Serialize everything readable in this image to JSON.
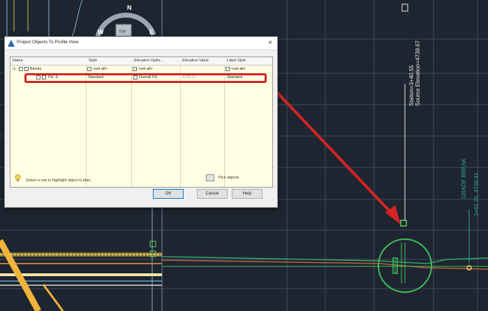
{
  "compass": {
    "north": "N",
    "west": "W",
    "east": "E",
    "top_button": "TOP"
  },
  "labels": {
    "station": "Station=3+40.55",
    "elevation": "Source Elevation=4739.67",
    "grade_break": "GRADE BREAK",
    "grade_sta": "3+61.35, 4739.41"
  },
  "dialog": {
    "title": "Project Objects To Profile View",
    "close": "×",
    "columns": [
      "Name",
      "Style",
      "Elevation Optio...",
      "Elevation Value",
      "Label Style"
    ],
    "rows": [
      {
        "name": "Blocks",
        "style": "<set all>",
        "elevation_option": "<set all>",
        "elevation_value": "",
        "label_style": "<set all>"
      },
      {
        "name": "FH- 6",
        "style": "Standard",
        "elevation_option": "Overall FG",
        "elevation_value": "4739.67'",
        "label_style": "Standard"
      }
    ],
    "hint": "Select a row to highlight object in plan.",
    "pin_label": "Pick objects",
    "buttons": {
      "ok": "OK",
      "cancel": "Cancel",
      "help": "Help"
    }
  },
  "colors": {
    "background": "#1e2530",
    "annotation": "#e8e8e8",
    "green": "#3fbf5f",
    "highlight": "#d42424",
    "grade_text": "#2fa88a"
  }
}
